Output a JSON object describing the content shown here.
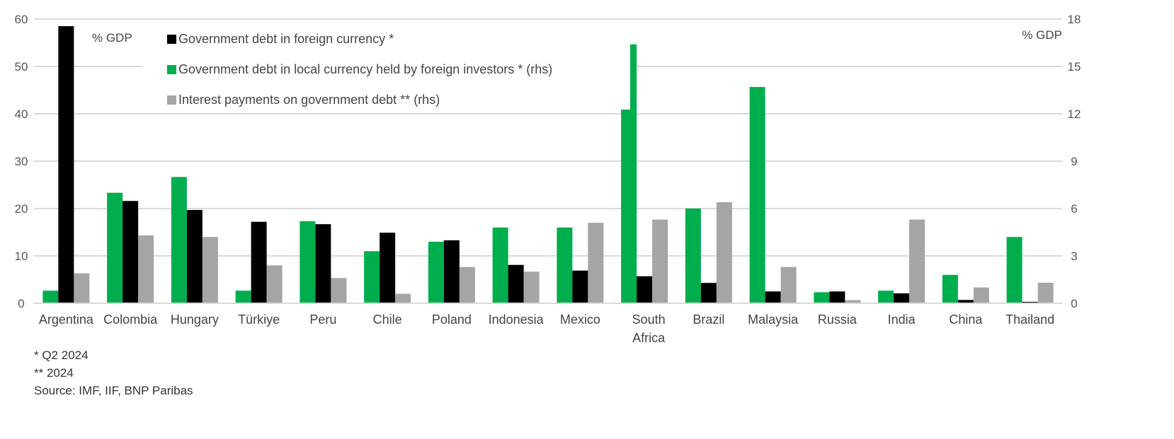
{
  "chart_data": {
    "type": "bar",
    "title": "",
    "ylabel_left": "% GDP",
    "ylabel_right": "% GDP",
    "ylim_left": [
      0,
      60
    ],
    "ylim_right": [
      0,
      18
    ],
    "yticks_left": [
      0,
      10,
      20,
      30,
      40,
      50,
      60
    ],
    "yticks_right": [
      0,
      3,
      6,
      9,
      12,
      15,
      18
    ],
    "grid": true,
    "legend_placement": "top-left",
    "categories": [
      "Argentina",
      "Colombia",
      "Hungary",
      "Türkiye",
      "Peru",
      "Chile",
      "Poland",
      "Indonesia",
      "Mexico",
      "South Africa",
      "Brazil",
      "Malaysia",
      "Russia",
      "India",
      "China",
      "Thailand"
    ],
    "series": [
      {
        "name": "Government debt in local currency held by foreign investors * (rhs)",
        "axis": "right",
        "color": "#00AE4D",
        "values": [
          0.8,
          7.0,
          8.0,
          0.8,
          5.2,
          3.3,
          3.9,
          4.8,
          4.8,
          16.4,
          6.0,
          13.7,
          0.7,
          0.8,
          1.8,
          4.2
        ]
      },
      {
        "name": "Government debt in foreign currency *",
        "axis": "left",
        "color": "#000000",
        "values": [
          58.5,
          21.6,
          19.7,
          17.2,
          16.7,
          14.9,
          13.3,
          8.1,
          6.9,
          5.7,
          4.3,
          2.5,
          2.5,
          2.1,
          0.7,
          0.3
        ]
      },
      {
        "name": "Interest payments on government debt ** (rhs)",
        "axis": "right",
        "color": "#A5A5A5",
        "values": [
          1.9,
          4.3,
          4.2,
          2.4,
          1.6,
          0.6,
          2.3,
          2.0,
          5.1,
          5.3,
          6.4,
          2.3,
          0.2,
          5.3,
          1.0,
          1.3
        ]
      }
    ],
    "legend_order": [
      1,
      0,
      2
    ]
  },
  "notes": [
    "* Q2 2024",
    "** 2024",
    "Source: IMF, IIF, BNP Paribas"
  ]
}
